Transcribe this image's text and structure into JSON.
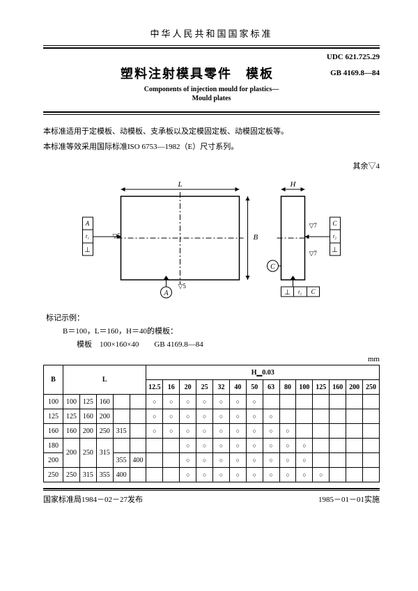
{
  "header": {
    "nation_title": "中华人民共和国国家标准",
    "udc": "UDC 621.725.29",
    "main_title": "塑料注射模具零件　模板",
    "gb": "GB 4169.8—84",
    "en_line1": "Components of injection mould for plastics—",
    "en_line2": "Mould plates"
  },
  "intro": {
    "p1": "本标准适用于定模板、动模板、支承板以及定模固定板、动模固定板等。",
    "p2": "本标准等效采用国际标准ISO 6753—1982（E）尺寸系列。",
    "note": "其余▽4"
  },
  "diagram": {
    "label_L": "L",
    "label_B": "B",
    "label_H": "H",
    "label_A": "A",
    "label_C": "C",
    "label_t1": "t₁",
    "label_t2": "t₂",
    "tri5": "▽5",
    "tri7": "▽7"
  },
  "example": {
    "head": "标记示例：",
    "line1": "B＝100，L＝160，H＝40的模板：",
    "line2": "模板　100×160×40　　GB 4169.8—84"
  },
  "table": {
    "unit": "mm",
    "h_header": "H▁0.03",
    "B_label": "B",
    "L_label": "L",
    "h_cols": [
      "12.5",
      "16",
      "20",
      "25",
      "32",
      "40",
      "50",
      "63",
      "80",
      "100",
      "125",
      "160",
      "200",
      "250"
    ],
    "rows": [
      {
        "B": "100",
        "L": [
          "100",
          "125",
          "160",
          ""
        ],
        "marks": [
          1,
          1,
          1,
          1,
          1,
          1,
          1,
          0,
          0,
          0,
          0,
          0,
          0,
          0
        ]
      },
      {
        "B": "125",
        "L": [
          "125",
          "160",
          "200",
          ""
        ],
        "marks": [
          1,
          1,
          1,
          1,
          1,
          1,
          1,
          1,
          0,
          0,
          0,
          0,
          0,
          0
        ]
      },
      {
        "B": "160",
        "L": [
          "160",
          "200",
          "250",
          "315"
        ],
        "marks": [
          1,
          1,
          1,
          1,
          1,
          1,
          1,
          1,
          1,
          0,
          0,
          0,
          0,
          0
        ]
      },
      {
        "B": "180",
        "Lspan": "top",
        "marks": [
          0,
          0,
          1,
          1,
          1,
          1,
          1,
          1,
          1,
          1,
          0,
          0,
          0,
          0
        ]
      },
      {
        "B": "200",
        "L": [
          "200",
          "250",
          "315",
          "355",
          "400"
        ],
        "Lspan": "bot",
        "marks": [
          0,
          0,
          1,
          1,
          1,
          1,
          1,
          1,
          1,
          1,
          0,
          0,
          0,
          0
        ]
      },
      {
        "B": "250",
        "L": [
          "250",
          "315",
          "355",
          "400"
        ],
        "marks": [
          0,
          0,
          1,
          1,
          1,
          1,
          1,
          1,
          1,
          1,
          1,
          0,
          0,
          0
        ]
      }
    ]
  },
  "footer": {
    "left": "国家标准局1984－02－27发布",
    "right": "1985－01－01实施"
  },
  "colors": {
    "fg": "#000000",
    "bg": "#ffffff"
  }
}
